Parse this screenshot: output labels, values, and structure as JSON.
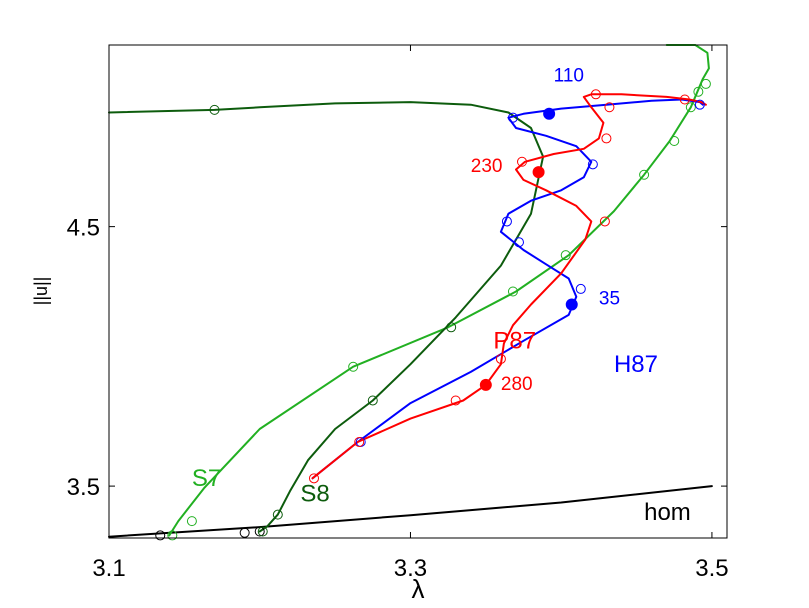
{
  "chart_data": {
    "type": "line",
    "xlabel": "λ",
    "ylabel": "||u||",
    "xlim": [
      3.1,
      3.51
    ],
    "ylim": [
      3.3,
      5.2
    ],
    "x_ticks": [
      3.1,
      3.3,
      3.5
    ],
    "y_ticks": [
      3.5,
      4.5
    ],
    "x_tick_labels": [
      "3.1",
      "3.3",
      "3.5"
    ],
    "y_tick_labels": [
      "3.5",
      "4.5"
    ],
    "grid": false,
    "series": [
      {
        "name": "hom",
        "color": "#000000",
        "style": "solid",
        "x": [
          3.1,
          3.2,
          3.3,
          3.4,
          3.5
        ],
        "y": [
          3.305,
          3.342,
          3.388,
          3.437,
          3.5
        ],
        "markers_open": [
          [
            3.134,
            3.31
          ],
          [
            3.19,
            3.32
          ],
          [
            3.2,
            3.325
          ]
        ],
        "markers_filled": []
      },
      {
        "name": "S7",
        "color": "#22b022",
        "style": "solid",
        "x": [
          3.14,
          3.146,
          3.163,
          3.2,
          3.262,
          3.325,
          3.37,
          3.405,
          3.435,
          3.455,
          3.472,
          3.486,
          3.494,
          3.498,
          3.497,
          3.489,
          3.47
        ],
        "y": [
          3.31,
          3.365,
          3.492,
          3.72,
          3.96,
          4.112,
          4.25,
          4.39,
          4.56,
          4.7,
          4.83,
          4.96,
          5.07,
          5.11,
          5.17,
          5.2,
          5.2
        ],
        "markers_open": [
          [
            3.142,
            3.31
          ],
          [
            3.155,
            3.365
          ],
          [
            3.262,
            3.96
          ],
          [
            3.368,
            4.25
          ],
          [
            3.403,
            4.39
          ],
          [
            3.455,
            4.7
          ],
          [
            3.475,
            4.83
          ],
          [
            3.486,
            4.96
          ],
          [
            3.491,
            5.02
          ],
          [
            3.496,
            5.05
          ]
        ],
        "markers_filled": []
      },
      {
        "name": "S8",
        "color": "#0d5c0d",
        "style": "solid",
        "x": [
          3.2,
          3.205,
          3.212,
          3.22,
          3.232,
          3.25,
          3.275,
          3.3,
          3.33,
          3.36,
          3.38,
          3.388,
          3.38,
          3.365,
          3.34,
          3.3,
          3.25,
          3.2,
          3.17,
          3.1
        ],
        "y": [
          3.325,
          3.345,
          3.39,
          3.48,
          3.6,
          3.72,
          3.83,
          3.97,
          4.15,
          4.35,
          4.55,
          4.77,
          4.88,
          4.94,
          4.97,
          4.98,
          4.975,
          4.96,
          4.95,
          4.94
        ],
        "markers_open": [
          [
            3.202,
            3.325
          ],
          [
            3.212,
            3.39
          ],
          [
            3.275,
            3.83
          ],
          [
            3.327,
            4.112
          ],
          [
            3.17,
            4.95
          ]
        ],
        "markers_filled": []
      },
      {
        "name": "H87",
        "color": "#0000ff",
        "style": "solid",
        "x": [
          3.235,
          3.265,
          3.3,
          3.34,
          3.375,
          3.405,
          3.41,
          3.405,
          3.39,
          3.375,
          3.36,
          3.365,
          3.38,
          3.4,
          3.415,
          3.42,
          3.41,
          3.39,
          3.37,
          3.365,
          3.375,
          3.4,
          3.43,
          3.46,
          3.48,
          3.492,
          3.494
        ],
        "y": [
          3.53,
          3.67,
          3.82,
          3.94,
          4.06,
          4.16,
          4.23,
          4.3,
          4.355,
          4.41,
          4.48,
          4.55,
          4.6,
          4.64,
          4.69,
          4.75,
          4.81,
          4.85,
          4.88,
          4.92,
          4.935,
          4.955,
          4.97,
          4.985,
          4.99,
          4.98,
          4.97
        ],
        "markers_open": [
          [
            3.267,
            3.67
          ],
          [
            3.413,
            4.26
          ],
          [
            3.372,
            4.44
          ],
          [
            3.364,
            4.52
          ],
          [
            3.421,
            4.74
          ],
          [
            3.368,
            4.92
          ],
          [
            3.492,
            4.97
          ]
        ],
        "markers_filled": [
          [
            3.407,
            4.2
          ],
          [
            3.392,
            4.935
          ]
        ]
      },
      {
        "name": "P87",
        "color": "#ff0000",
        "style": "solid",
        "x": [
          3.235,
          3.265,
          3.3,
          3.335,
          3.35,
          3.36,
          3.362,
          3.368,
          3.38,
          3.4,
          3.416,
          3.42,
          3.41,
          3.39,
          3.375,
          3.37,
          3.376,
          3.395,
          3.415,
          3.425,
          3.428,
          3.42,
          3.415,
          3.42,
          3.44,
          3.47,
          3.485,
          3.493,
          3.496
        ],
        "y": [
          3.53,
          3.67,
          3.76,
          3.83,
          3.89,
          3.97,
          4.05,
          4.12,
          4.2,
          4.32,
          4.45,
          4.52,
          4.58,
          4.64,
          4.68,
          4.72,
          4.75,
          4.78,
          4.8,
          4.84,
          4.9,
          4.96,
          5.0,
          5.01,
          5.01,
          5.0,
          4.99,
          4.98,
          4.97
        ],
        "markers_open": [
          [
            3.236,
            3.53
          ],
          [
            3.266,
            3.67
          ],
          [
            3.33,
            3.83
          ],
          [
            3.36,
            3.99
          ],
          [
            3.429,
            4.52
          ],
          [
            3.374,
            4.75
          ],
          [
            3.43,
            4.84
          ],
          [
            3.432,
            4.96
          ],
          [
            3.423,
            5.01
          ],
          [
            3.482,
            4.99
          ]
        ],
        "markers_filled": [
          [
            3.35,
            3.89
          ],
          [
            3.385,
            4.71
          ]
        ]
      }
    ],
    "annotations": [
      {
        "text": "110",
        "color": "#0000ff",
        "x": 3.395,
        "y": 5.06
      },
      {
        "text": "230",
        "color": "#ff0000",
        "x": 3.34,
        "y": 4.71
      },
      {
        "text": "35",
        "color": "#0000ff",
        "x": 3.425,
        "y": 4.2
      },
      {
        "text": "P87",
        "color": "#ff0000",
        "x": 3.355,
        "y": 4.03
      },
      {
        "text": "H87",
        "color": "#0000ff",
        "x": 3.435,
        "y": 3.94
      },
      {
        "text": "280",
        "color": "#ff0000",
        "x": 3.36,
        "y": 3.87
      },
      {
        "text": "S7",
        "color": "#22b022",
        "x": 3.155,
        "y": 3.5
      },
      {
        "text": "S8",
        "color": "#0d5c0d",
        "x": 3.227,
        "y": 3.44
      },
      {
        "text": "hom",
        "color": "#000000",
        "x": 3.455,
        "y": 3.37
      }
    ]
  }
}
